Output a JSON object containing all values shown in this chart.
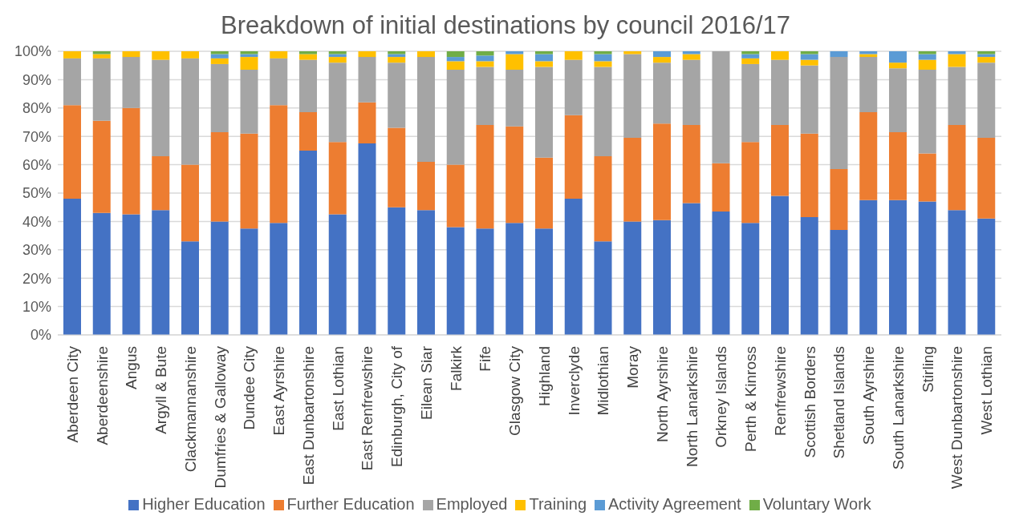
{
  "chart_data": {
    "type": "bar",
    "title": "Breakdown of initial destinations by council 2016/17",
    "stacked": true,
    "grid": "y",
    "legend": "bottom",
    "categories": [
      "Aberdeen City",
      "Aberdeenshire",
      "Angus",
      "Argyll & Bute",
      "Clackmannanshire",
      "Dumfries & Galloway",
      "Dundee City",
      "East Ayrshire",
      "East Dunbartonshire",
      "East Lothian",
      "East Renfrewshire",
      "Edinburgh, City of",
      "Eilean Siar",
      "Falkirk",
      "Fife",
      "Glasgow City",
      "Highland",
      "Inverclyde",
      "Midlothian",
      "Moray",
      "North Ayrshire",
      "North Lanarkshire",
      "Orkney Islands",
      "Perth & Kinross",
      "Renfrewshire",
      "Scottish Borders",
      "Shetland Islands",
      "South Ayrshire",
      "South Lanarkshire",
      "Stirling",
      "West Dunbartonshire",
      "West Lothian"
    ],
    "ylim": [
      0,
      100
    ],
    "yticks": [
      {
        "value": 0,
        "label": "0%"
      },
      {
        "value": 10,
        "label": "10%"
      },
      {
        "value": 20,
        "label": "20%"
      },
      {
        "value": 30,
        "label": "30%"
      },
      {
        "value": 40,
        "label": "40%"
      },
      {
        "value": 50,
        "label": "50%"
      },
      {
        "value": 60,
        "label": "60%"
      },
      {
        "value": 70,
        "label": "70%"
      },
      {
        "value": 80,
        "label": "80%"
      },
      {
        "value": 90,
        "label": "90%"
      },
      {
        "value": 100,
        "label": "100%"
      }
    ],
    "series": [
      {
        "name": "Higher Education",
        "color": "#4472c4",
        "values": [
          48,
          43,
          42.5,
          44,
          33,
          40,
          37.5,
          39.5,
          65,
          42.5,
          67.5,
          45,
          44,
          38,
          37.5,
          39.5,
          37.5,
          48,
          33,
          40,
          40.5,
          46.5,
          43.5,
          39.5,
          49,
          41.5,
          37,
          47.5,
          47.5,
          47,
          44,
          41
        ]
      },
      {
        "name": "Further Education",
        "color": "#ed7d31",
        "values": [
          33,
          32.5,
          37.5,
          19,
          27,
          31.5,
          33.5,
          41.5,
          13.5,
          25.5,
          14.5,
          28,
          17,
          22,
          36.5,
          34,
          25,
          29.5,
          30,
          29.5,
          34,
          27.5,
          17,
          28.5,
          25,
          29.5,
          21.5,
          31,
          24,
          17,
          30,
          28.5
        ]
      },
      {
        "name": "Employed",
        "color": "#a5a5a5",
        "values": [
          16.5,
          22,
          18,
          34,
          37.5,
          24,
          22.5,
          16.5,
          18.5,
          28,
          16,
          23,
          37,
          33.5,
          20.5,
          20,
          32,
          19.5,
          31.5,
          29.5,
          21.5,
          23,
          39.5,
          27.5,
          23,
          24,
          39.5,
          19.5,
          22.5,
          29.5,
          20.5,
          26.5
        ]
      },
      {
        "name": "Training",
        "color": "#ffc000",
        "values": [
          2.5,
          1.5,
          2,
          3,
          2.5,
          2,
          4.5,
          2.5,
          2,
          2,
          2,
          2,
          2,
          3,
          2,
          5.5,
          2,
          3,
          2,
          1,
          2,
          2,
          0,
          2,
          3,
          2,
          0,
          1,
          2,
          3.5,
          4.5,
          2
        ]
      },
      {
        "name": "Activity Agreement",
        "color": "#5b9bd5",
        "values": [
          0,
          0,
          0,
          0,
          0,
          1.5,
          1,
          0,
          0,
          1,
          0,
          1,
          0,
          1.5,
          2,
          1,
          2.5,
          0,
          2.5,
          0,
          2,
          1,
          0,
          1.5,
          0,
          2,
          2,
          1,
          4,
          2,
          1,
          1
        ]
      },
      {
        "name": "Voluntary Work",
        "color": "#70ad47",
        "values": [
          0,
          1,
          0,
          0,
          0,
          1,
          1,
          0,
          1,
          1,
          0,
          1,
          0,
          2,
          1.5,
          0,
          1,
          0,
          1,
          0,
          0,
          0,
          0,
          1,
          0,
          1,
          0,
          0,
          0,
          1,
          0,
          1
        ]
      }
    ]
  }
}
